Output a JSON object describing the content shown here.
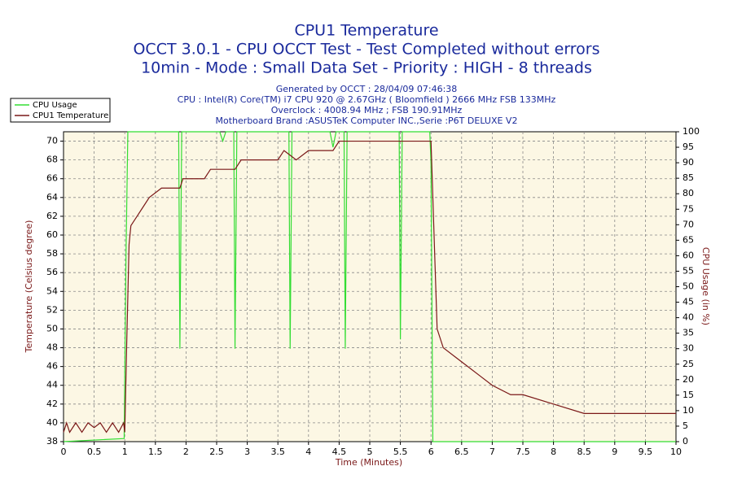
{
  "chart_data": {
    "type": "line",
    "title": "CPU1 Temperature",
    "subtitle": [
      "OCCT 3.0.1 - CPU OCCT Test - Test Completed without errors",
      "10min - Mode : Small Data Set - Priority : HIGH - 8 threads"
    ],
    "info": [
      "Generated by OCCT : 28/04/09 07:46:38",
      "CPU : Intel(R) Core(TM) i7 CPU 920 @ 2.67GHz ( Bloomfield ) 2666 MHz FSB 133MHz",
      "Overclock : 4008.94 MHz ; FSB 190.91MHz",
      "Motherboard Brand :ASUSTeK Computer INC.,Serie :P6T DELUXE V2"
    ],
    "xlabel": "Time (Minutes)",
    "ylabel": "Temperature (Celsius degree)",
    "y2label": "CPU Usage (in %)",
    "xlim": [
      0,
      10
    ],
    "xticks": [
      0,
      0.5,
      1,
      1.5,
      2,
      2.5,
      3,
      3.5,
      4,
      4.5,
      5,
      5.5,
      6,
      6.5,
      7,
      7.5,
      8,
      8.5,
      9,
      9.5,
      10
    ],
    "ylim": [
      38,
      71
    ],
    "yticks": [
      38,
      40,
      42,
      44,
      46,
      48,
      50,
      52,
      54,
      56,
      58,
      60,
      62,
      64,
      66,
      68,
      70
    ],
    "y2lim": [
      0,
      100
    ],
    "y2ticks": [
      0,
      5,
      10,
      15,
      20,
      25,
      30,
      35,
      40,
      45,
      50,
      55,
      60,
      65,
      70,
      75,
      80,
      85,
      90,
      95,
      100
    ],
    "grid": true,
    "series": [
      {
        "name": "CPU Usage",
        "color": "#33dd33",
        "axis": "y2",
        "x": [
          0,
          0.99,
          1.02,
          1.05,
          1.88,
          1.9,
          1.93,
          2.55,
          2.6,
          2.65,
          2.78,
          2.8,
          2.83,
          3.68,
          3.7,
          3.73,
          4.35,
          4.4,
          4.45,
          4.58,
          4.6,
          4.63,
          5.48,
          5.5,
          5.53,
          5.98,
          6.0,
          6.03,
          10
        ],
        "values": [
          0,
          1,
          60,
          100,
          100,
          30,
          100,
          100,
          97,
          100,
          100,
          30,
          100,
          100,
          30,
          100,
          100,
          95,
          100,
          100,
          30,
          100,
          100,
          33,
          100,
          100,
          90,
          0,
          0
        ]
      },
      {
        "name": "CPU1 Temperature",
        "color": "#7a1818",
        "x": [
          0,
          0.05,
          0.1,
          0.2,
          0.3,
          0.4,
          0.5,
          0.6,
          0.7,
          0.8,
          0.9,
          0.98,
          1.0,
          1.03,
          1.07,
          1.1,
          1.2,
          1.3,
          1.4,
          1.6,
          1.9,
          1.95,
          2.3,
          2.4,
          2.8,
          2.9,
          3.5,
          3.6,
          3.8,
          4.0,
          4.4,
          4.5,
          6.0,
          6.05,
          6.1,
          6.2,
          6.4,
          6.6,
          6.8,
          7.0,
          7.3,
          7.5,
          8.0,
          8.5,
          9.0,
          9.3,
          9.5,
          10
        ],
        "values": [
          39,
          40,
          39,
          40,
          39,
          40,
          39.5,
          40,
          39,
          40,
          39,
          40,
          39,
          48,
          59,
          61,
          62,
          63,
          64,
          65,
          65,
          66,
          66,
          67,
          67,
          68,
          68,
          69,
          68,
          69,
          69,
          70,
          70,
          60,
          50,
          48,
          47,
          46,
          45,
          44,
          43,
          43,
          42,
          41,
          41,
          41,
          41,
          41
        ]
      }
    ]
  }
}
